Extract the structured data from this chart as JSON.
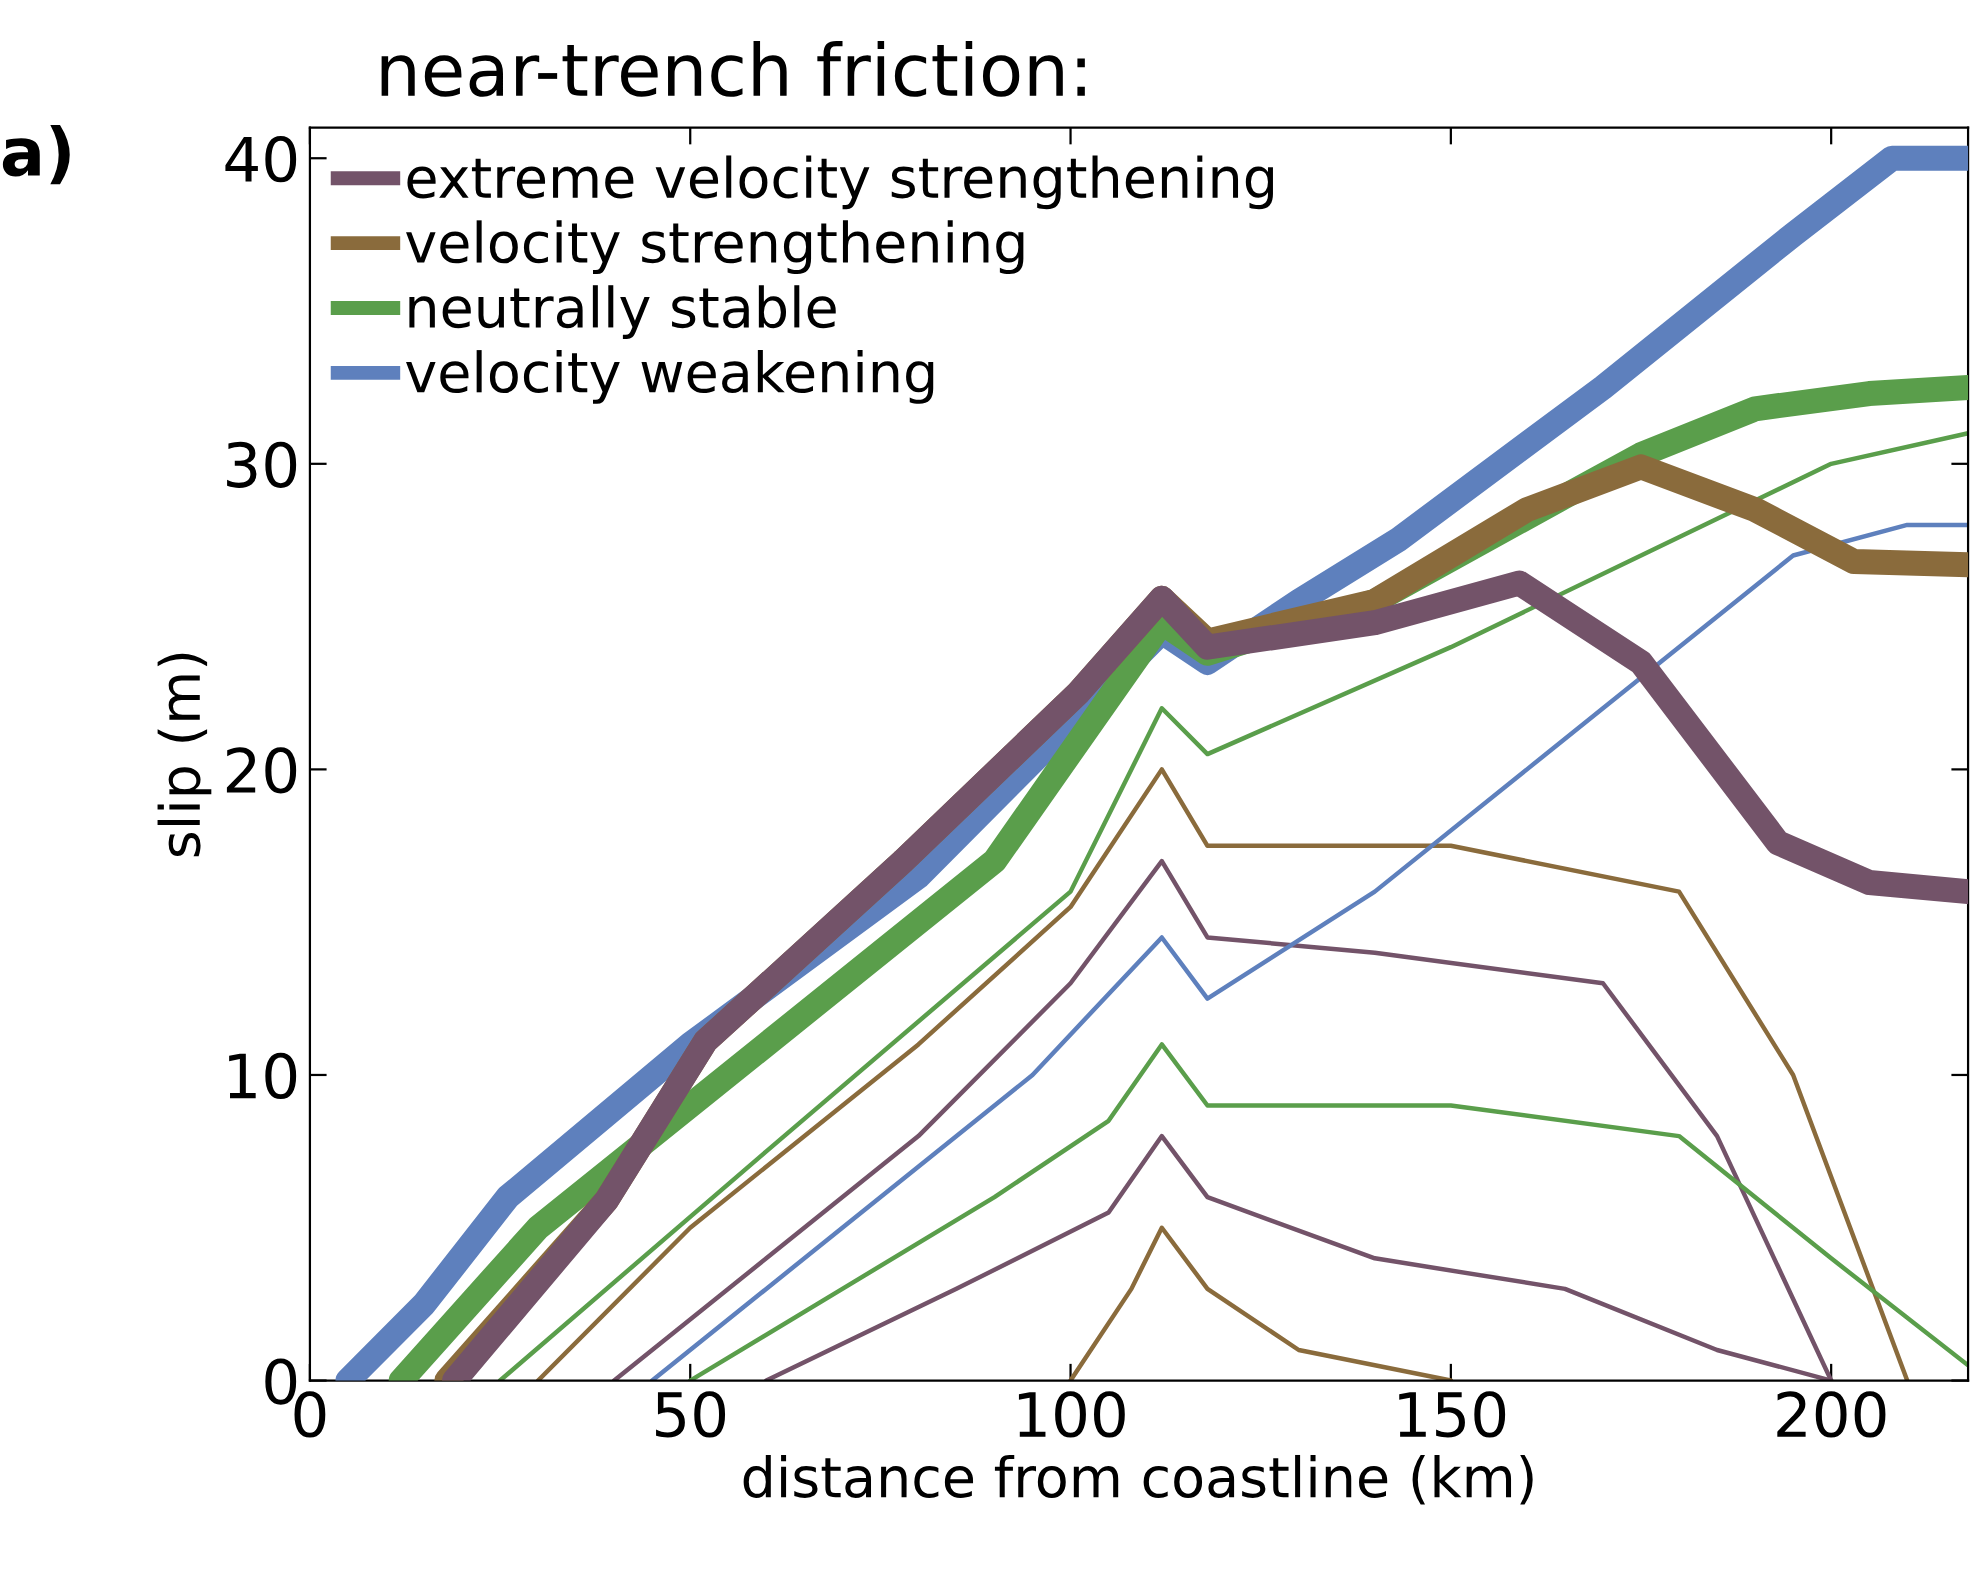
{
  "chart_data": {
    "type": "line",
    "title": "near-trench friction:",
    "annotations": [
      "a)"
    ],
    "xlabel": "distance from coastline (km)",
    "ylabel": "slip (m)",
    "xlim": [
      0,
      218
    ],
    "xticks": [
      0,
      50,
      100,
      150,
      200
    ],
    "ylim": [
      0,
      41
    ],
    "yticks": [
      0,
      10,
      20,
      30,
      40
    ],
    "grid": false,
    "legend": "top left",
    "line_style": "solid",
    "marker": "none",
    "series": [
      {
        "color": "#735369",
        "x": [
          40,
          60,
          80,
          100,
          112,
          118,
          140,
          170,
          185,
          200
        ],
        "values": [
          0,
          4,
          8,
          13,
          17,
          14.5,
          14,
          13,
          8,
          0
        ]
      },
      {
        "color": "#8a6b3c",
        "x": [
          30,
          50,
          80,
          100,
          112,
          118,
          150,
          180,
          195,
          210
        ],
        "values": [
          0,
          5,
          11,
          15.5,
          20,
          17.5,
          17.5,
          16,
          10,
          0
        ]
      },
      {
        "color": "#5a9e4b",
        "x": [
          50,
          70,
          90,
          105,
          112,
          118,
          150,
          180,
          200,
          218
        ],
        "values": [
          0,
          3,
          6,
          8.5,
          11,
          9,
          9,
          8,
          4,
          0.5
        ]
      },
      {
        "color": "#5e80bd",
        "x": [
          45,
          70,
          95,
          112,
          118,
          140,
          170,
          195,
          210,
          218
        ],
        "values": [
          0,
          5,
          10,
          14.5,
          12.5,
          16,
          22,
          27,
          28,
          28
        ]
      },
      {
        "color": "#5a9e4b",
        "x": [
          25,
          60,
          100,
          112,
          118,
          150,
          175,
          200,
          218
        ],
        "values": [
          0,
          7.5,
          16,
          22,
          20.5,
          24,
          27,
          30,
          31
        ]
      },
      {
        "color": "#735369",
        "x": [
          60,
          85,
          105,
          112,
          118,
          140,
          165,
          185,
          200
        ],
        "values": [
          0,
          3,
          5.5,
          8,
          6,
          4,
          3,
          1,
          0
        ]
      },
      {
        "color": "#8a6b3c",
        "x": [
          100,
          108,
          112,
          118,
          130,
          150
        ],
        "values": [
          0,
          3,
          5,
          3,
          1,
          0
        ]
      },
      {
        "name": "velocity weakening",
        "color": "#5e80bd",
        "x": [
          5,
          15,
          26,
          50,
          80,
          112,
          118,
          130,
          143,
          170,
          195,
          208,
          218
        ],
        "values": [
          0,
          2.5,
          6,
          11,
          16.5,
          24.5,
          23.5,
          25.5,
          27.5,
          32.5,
          37.5,
          40,
          40
        ]
      },
      {
        "name": "neutrally stable",
        "color": "#5a9e4b",
        "x": [
          12,
          30,
          60,
          90,
          112,
          118,
          140,
          164,
          175,
          190,
          205,
          218
        ],
        "values": [
          0,
          5,
          11,
          17,
          24.8,
          23.8,
          25.5,
          28.8,
          30.3,
          31.8,
          32.3,
          32.5
        ]
      },
      {
        "name": "velocity strengthening",
        "color": "#8a6b3c",
        "x": [
          18,
          39,
          52,
          78,
          101,
          112,
          118,
          140,
          160,
          175,
          190,
          203,
          218
        ],
        "values": [
          0,
          5.9,
          11.1,
          17,
          22.5,
          25.6,
          24.2,
          25.5,
          28.5,
          29.9,
          28.5,
          26.8,
          26.7
        ]
      },
      {
        "name": "extreme velocity strengthening",
        "color": "#735369",
        "x": [
          19,
          39,
          52,
          78,
          101,
          112,
          118,
          140,
          159,
          175,
          193,
          205,
          218
        ],
        "values": [
          0,
          5.9,
          11.1,
          17,
          22.5,
          25.6,
          24,
          24.8,
          26.1,
          23.5,
          17.6,
          16.3,
          16
        ]
      }
    ]
  }
}
